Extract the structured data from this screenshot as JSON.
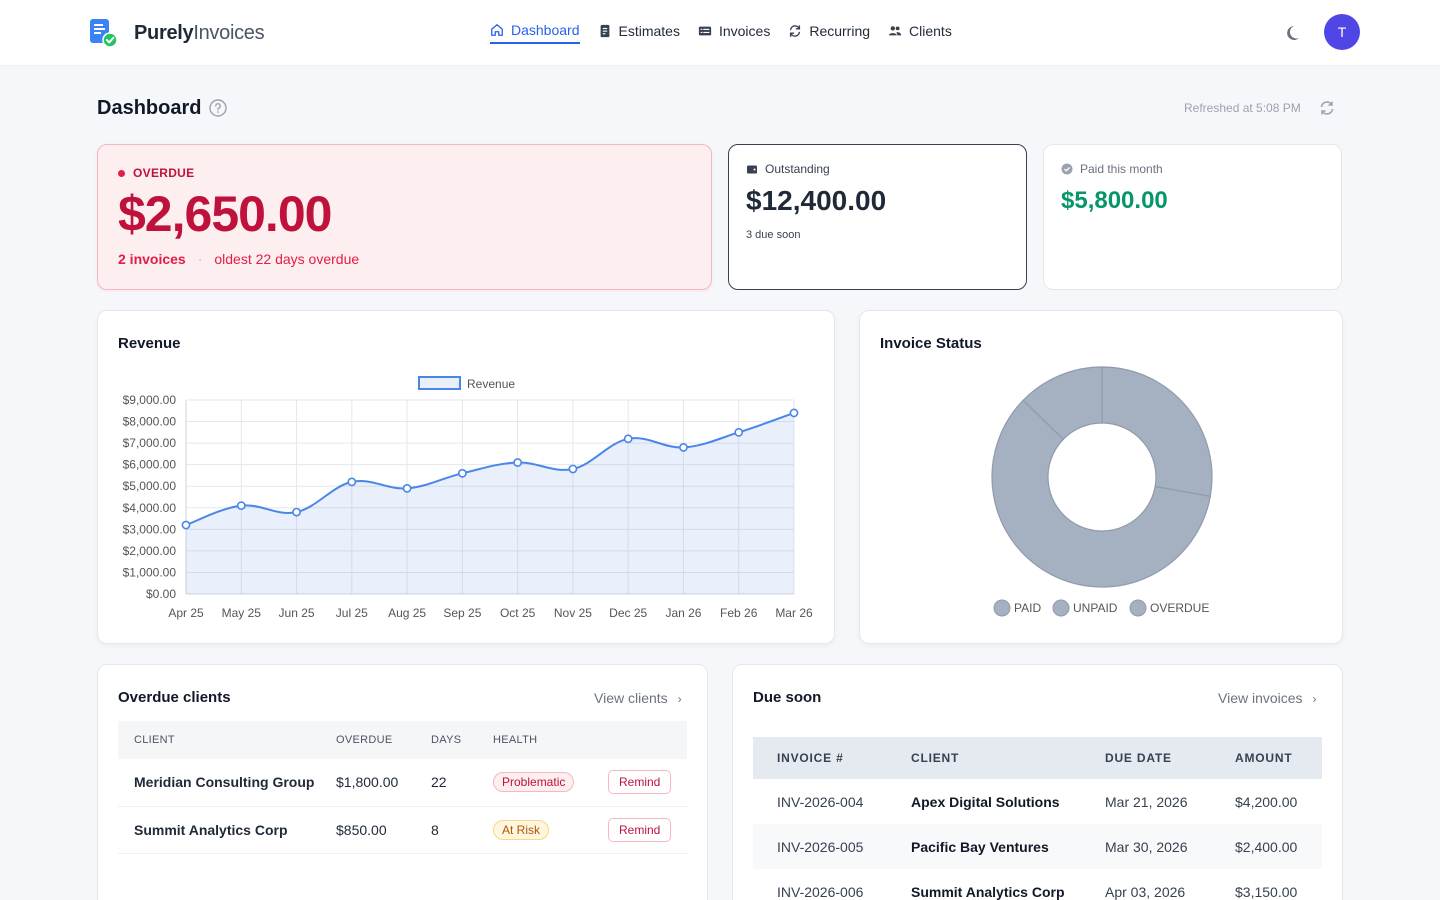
{
  "brand": {
    "name_bold": "Purely",
    "name_light": "Invoices"
  },
  "nav": [
    {
      "label": "Dashboard",
      "icon": "home-icon",
      "active": true
    },
    {
      "label": "Estimates",
      "icon": "document-icon"
    },
    {
      "label": "Invoices",
      "icon": "list-icon"
    },
    {
      "label": "Recurring",
      "icon": "recurring-icon"
    },
    {
      "label": "Clients",
      "icon": "users-icon"
    }
  ],
  "user": {
    "avatar_initial": "T"
  },
  "page": {
    "title": "Dashboard",
    "refreshed": "Refreshed at 5:08 PM"
  },
  "stats": {
    "overdue": {
      "label": "OVERDUE",
      "amount": "$2,650.00",
      "count": "2 invoices",
      "oldest": "oldest 22 days overdue"
    },
    "outstanding": {
      "label": "Outstanding",
      "amount": "$12,400.00",
      "sub": "3 due soon"
    },
    "paid": {
      "label": "Paid this month",
      "amount": "$5,800.00"
    }
  },
  "revenue": {
    "title": "Revenue"
  },
  "status": {
    "title": "Invoice Status"
  },
  "chart_data": [
    {
      "type": "line",
      "title": "Revenue",
      "x": [
        "Apr 25",
        "May 25",
        "Jun 25",
        "Jul 25",
        "Aug 25",
        "Sep 25",
        "Oct 25",
        "Nov 25",
        "Dec 25",
        "Jan 26",
        "Feb 26",
        "Mar 26"
      ],
      "series": [
        {
          "name": "Revenue",
          "values": [
            3200,
            4100,
            3800,
            5200,
            4900,
            5600,
            6100,
            5800,
            7200,
            6800,
            7500,
            8400
          ]
        }
      ],
      "ylim": [
        0,
        9000
      ],
      "yticks": [
        "$9,000.00",
        "$8,000.00",
        "$7,000.00",
        "$6,000.00",
        "$5,000.00",
        "$4,000.00",
        "$3,000.00",
        "$2,000.00",
        "$1,000.00",
        "$0.00"
      ],
      "grid": true,
      "legend": "top",
      "fill": "area",
      "color": "#4a86e8"
    },
    {
      "type": "pie",
      "title": "Invoice Status",
      "categories": [
        "PAID",
        "UNPAID",
        "OVERDUE"
      ],
      "values": [
        5800,
        12400,
        2650
      ],
      "donut": true,
      "legend": "bottom",
      "color": "#a5b0c0"
    }
  ],
  "overdue_clients": {
    "title": "Overdue clients",
    "link": "View clients",
    "columns": [
      "CLIENT",
      "OVERDUE",
      "DAYS",
      "HEALTH"
    ],
    "rows": [
      {
        "client": "Meridian Consulting Group",
        "overdue": "$1,800.00",
        "days": "22",
        "health": "Problematic",
        "action": "Remind"
      },
      {
        "client": "Summit Analytics Corp",
        "overdue": "$850.00",
        "days": "8",
        "health": "At Risk",
        "action": "Remind"
      }
    ]
  },
  "due_soon": {
    "title": "Due soon",
    "link": "View invoices",
    "columns": [
      "INVOICE #",
      "CLIENT",
      "DUE DATE",
      "AMOUNT"
    ],
    "rows": [
      {
        "invoice": "INV-2026-004",
        "client": "Apex Digital Solutions",
        "due": "Mar 21, 2026",
        "amount": "$4,200.00"
      },
      {
        "invoice": "INV-2026-005",
        "client": "Pacific Bay Ventures",
        "due": "Mar 30, 2026",
        "amount": "$2,400.00"
      },
      {
        "invoice": "INV-2026-006",
        "client": "Summit Analytics Corp",
        "due": "Apr 03, 2026",
        "amount": "$3,150.00"
      }
    ]
  },
  "colors": {
    "accent": "#2563eb",
    "danger": "#be123c",
    "success": "#059669",
    "avatar": "#4f46e5"
  }
}
